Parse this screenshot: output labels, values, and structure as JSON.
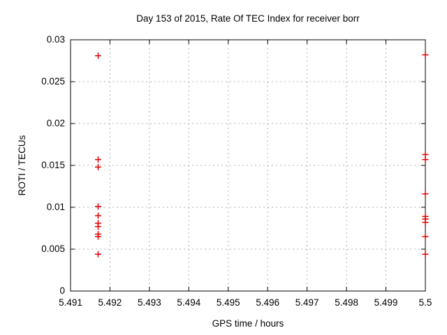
{
  "chart_data": {
    "type": "scatter",
    "title": "Day 153 of 2015, Rate Of TEC Index for receiver borr",
    "xlabel": "GPS time / hours",
    "ylabel": "ROTI / TECUs",
    "xlim": [
      5.491,
      5.5
    ],
    "ylim": [
      0,
      0.03
    ],
    "xticks": [
      5.491,
      5.492,
      5.493,
      5.494,
      5.495,
      5.496,
      5.497,
      5.498,
      5.499,
      5.5
    ],
    "xtick_labels": [
      "5.491",
      "5.492",
      "5.493",
      "5.494",
      "5.495",
      "5.496",
      "5.497",
      "5.498",
      "5.499",
      "5.5"
    ],
    "yticks": [
      0,
      0.005,
      0.01,
      0.015,
      0.02,
      0.025,
      0.03
    ],
    "ytick_labels": [
      "0",
      "0.005",
      "0.01",
      "0.015",
      "0.02",
      "0.025",
      "0.03"
    ],
    "grid": true,
    "legend": "none",
    "marker": "plus",
    "marker_color": "#e00000",
    "grid_color": "#b0b0b0",
    "axis_color": "#000000",
    "series": [
      {
        "name": "ROTI",
        "points": [
          [
            5.4917,
            0.0281
          ],
          [
            5.4917,
            0.0157
          ],
          [
            5.4917,
            0.0148
          ],
          [
            5.4917,
            0.0101
          ],
          [
            5.4917,
            0.009
          ],
          [
            5.4917,
            0.0081
          ],
          [
            5.4917,
            0.0077
          ],
          [
            5.4917,
            0.0068
          ],
          [
            5.4917,
            0.0065
          ],
          [
            5.4917,
            0.0044
          ],
          [
            5.5,
            0.0282
          ],
          [
            5.5,
            0.0163
          ],
          [
            5.5,
            0.0157
          ],
          [
            5.5,
            0.0116
          ],
          [
            5.5,
            0.0089
          ],
          [
            5.5,
            0.0086
          ],
          [
            5.5,
            0.0082
          ],
          [
            5.5,
            0.0065
          ],
          [
            5.5,
            0.0044
          ]
        ]
      }
    ]
  }
}
